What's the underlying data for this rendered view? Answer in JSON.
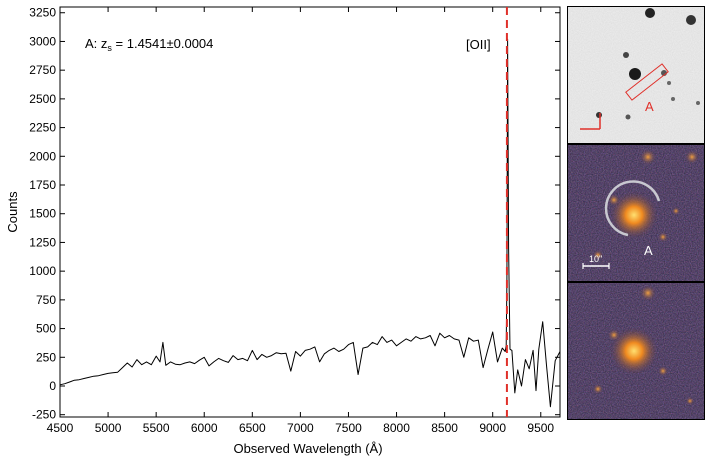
{
  "chart_data": {
    "type": "line",
    "xlabel": "Observed Wavelength (Å)",
    "ylabel": "Counts",
    "xlim": [
      4500,
      9700
    ],
    "ylim": [
      -270,
      3300
    ],
    "xticks": [
      4500,
      5000,
      5500,
      6000,
      6500,
      7000,
      7500,
      8000,
      8500,
      9000,
      9500
    ],
    "yticks": [
      -250,
      0,
      250,
      500,
      750,
      1000,
      1250,
      1500,
      1750,
      2000,
      2250,
      2500,
      2750,
      3000,
      3250
    ],
    "redshift_label": "A: z",
    "redshift_subscript": "s",
    "redshift_value": " = 1.4541±0.0004",
    "line_label": "[OII]",
    "line_marker_wavelength": 9148,
    "line_color": "#000000",
    "marker_color": "#e0302a",
    "series": [
      {
        "x": [
          4500,
          4550,
          4600,
          4650,
          4700,
          4750,
          4800,
          4850,
          4900,
          4950,
          5000,
          5050,
          5100,
          5150,
          5200,
          5250,
          5300,
          5350,
          5400,
          5450,
          5500,
          5540,
          5570,
          5600,
          5650,
          5700,
          5750,
          5800,
          5850,
          5900,
          5950,
          6000,
          6050,
          6100,
          6150,
          6200,
          6250,
          6300,
          6350,
          6400,
          6450,
          6500,
          6550,
          6600,
          6650,
          6700,
          6750,
          6800,
          6850,
          6900,
          6950,
          7000,
          7050,
          7100,
          7150,
          7200,
          7250,
          7300,
          7350,
          7400,
          7450,
          7500,
          7550,
          7600,
          7650,
          7700,
          7750,
          7800,
          7850,
          7900,
          7950,
          8000,
          8050,
          8100,
          8150,
          8200,
          8250,
          8300,
          8350,
          8400,
          8450,
          8500,
          8550,
          8600,
          8650,
          8700,
          8750,
          8800,
          8850,
          8900,
          8950,
          9000,
          9050,
          9100,
          9130,
          9140,
          9148,
          9155,
          9165,
          9180,
          9200,
          9230,
          9260,
          9300,
          9340,
          9380,
          9420,
          9450,
          9480,
          9520,
          9560,
          9600,
          9650,
          9700
        ],
        "y": [
          10,
          20,
          35,
          50,
          55,
          65,
          75,
          85,
          90,
          100,
          110,
          115,
          120,
          160,
          200,
          165,
          230,
          185,
          210,
          185,
          260,
          210,
          380,
          180,
          210,
          190,
          185,
          200,
          210,
          195,
          225,
          250,
          175,
          210,
          240,
          220,
          205,
          265,
          230,
          240,
          220,
          310,
          230,
          275,
          250,
          265,
          290,
          280,
          285,
          130,
          300,
          260,
          310,
          320,
          340,
          210,
          280,
          310,
          330,
          300,
          320,
          360,
          380,
          100,
          330,
          340,
          380,
          360,
          430,
          380,
          400,
          350,
          380,
          410,
          390,
          430,
          410,
          420,
          440,
          350,
          460,
          420,
          440,
          410,
          400,
          250,
          420,
          390,
          400,
          160,
          320,
          470,
          210,
          330,
          300,
          350,
          900,
          3020,
          1200,
          320,
          310,
          -60,
          140,
          0,
          230,
          150,
          310,
          -40,
          320,
          560,
          180,
          -180,
          220,
          300
        ]
      }
    ]
  },
  "panels": {
    "top_label": "A",
    "middle_label": "A",
    "scale_label": "10\""
  }
}
